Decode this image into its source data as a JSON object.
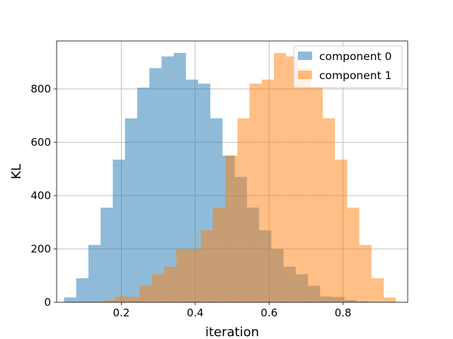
{
  "chart_data": {
    "type": "bar",
    "subtype": "overlapping-histogram",
    "xlabel": "iteration",
    "ylabel": "KL",
    "xlim": [
      0.025,
      0.975
    ],
    "ylim": [
      0,
      980
    ],
    "xticks": [
      0.2,
      0.4,
      0.6,
      0.8
    ],
    "yticks": [
      0,
      200,
      400,
      600,
      800
    ],
    "xtick_labels": [
      "0.2",
      "0.4",
      "0.6",
      "0.8"
    ],
    "ytick_labels": [
      "0",
      "200",
      "400",
      "600",
      "800"
    ],
    "grid": true,
    "legend_position": "top-right",
    "series": [
      {
        "name": "component 0",
        "color": "#1f77b4",
        "opacity": 0.5,
        "bins": [
          {
            "x0": 0.045,
            "x1": 0.078,
            "count": 18
          },
          {
            "x0": 0.078,
            "x1": 0.111,
            "count": 90
          },
          {
            "x0": 0.111,
            "x1": 0.144,
            "count": 215
          },
          {
            "x0": 0.144,
            "x1": 0.177,
            "count": 355
          },
          {
            "x0": 0.177,
            "x1": 0.21,
            "count": 535
          },
          {
            "x0": 0.21,
            "x1": 0.243,
            "count": 690
          },
          {
            "x0": 0.243,
            "x1": 0.276,
            "count": 805
          },
          {
            "x0": 0.276,
            "x1": 0.309,
            "count": 878
          },
          {
            "x0": 0.309,
            "x1": 0.342,
            "count": 922
          },
          {
            "x0": 0.342,
            "x1": 0.375,
            "count": 935
          },
          {
            "x0": 0.375,
            "x1": 0.408,
            "count": 835
          },
          {
            "x0": 0.408,
            "x1": 0.441,
            "count": 820
          },
          {
            "x0": 0.441,
            "x1": 0.474,
            "count": 690
          },
          {
            "x0": 0.474,
            "x1": 0.507,
            "count": 550
          },
          {
            "x0": 0.507,
            "x1": 0.54,
            "count": 470
          },
          {
            "x0": 0.54,
            "x1": 0.573,
            "count": 355
          },
          {
            "x0": 0.573,
            "x1": 0.606,
            "count": 270
          },
          {
            "x0": 0.606,
            "x1": 0.639,
            "count": 200
          },
          {
            "x0": 0.639,
            "x1": 0.672,
            "count": 133
          },
          {
            "x0": 0.672,
            "x1": 0.705,
            "count": 105
          },
          {
            "x0": 0.705,
            "x1": 0.738,
            "count": 62
          },
          {
            "x0": 0.738,
            "x1": 0.771,
            "count": 22
          },
          {
            "x0": 0.771,
            "x1": 0.804,
            "count": 20
          },
          {
            "x0": 0.804,
            "x1": 0.837,
            "count": 8
          },
          {
            "x0": 0.837,
            "x1": 0.87,
            "count": 3
          }
        ]
      },
      {
        "name": "component 1",
        "color": "#ff7f0e",
        "opacity": 0.5,
        "bins": [
          {
            "x0": 0.118,
            "x1": 0.151,
            "count": 3
          },
          {
            "x0": 0.151,
            "x1": 0.184,
            "count": 8
          },
          {
            "x0": 0.184,
            "x1": 0.217,
            "count": 22
          },
          {
            "x0": 0.217,
            "x1": 0.25,
            "count": 20
          },
          {
            "x0": 0.25,
            "x1": 0.283,
            "count": 62
          },
          {
            "x0": 0.283,
            "x1": 0.316,
            "count": 105
          },
          {
            "x0": 0.316,
            "x1": 0.349,
            "count": 133
          },
          {
            "x0": 0.349,
            "x1": 0.382,
            "count": 200
          },
          {
            "x0": 0.382,
            "x1": 0.415,
            "count": 200
          },
          {
            "x0": 0.415,
            "x1": 0.448,
            "count": 270
          },
          {
            "x0": 0.448,
            "x1": 0.481,
            "count": 355
          },
          {
            "x0": 0.481,
            "x1": 0.514,
            "count": 550
          },
          {
            "x0": 0.514,
            "x1": 0.547,
            "count": 690
          },
          {
            "x0": 0.547,
            "x1": 0.58,
            "count": 820
          },
          {
            "x0": 0.58,
            "x1": 0.613,
            "count": 835
          },
          {
            "x0": 0.613,
            "x1": 0.646,
            "count": 935
          },
          {
            "x0": 0.646,
            "x1": 0.679,
            "count": 922
          },
          {
            "x0": 0.679,
            "x1": 0.712,
            "count": 878
          },
          {
            "x0": 0.712,
            "x1": 0.745,
            "count": 805
          },
          {
            "x0": 0.745,
            "x1": 0.778,
            "count": 690
          },
          {
            "x0": 0.778,
            "x1": 0.811,
            "count": 535
          },
          {
            "x0": 0.811,
            "x1": 0.844,
            "count": 355
          },
          {
            "x0": 0.844,
            "x1": 0.877,
            "count": 215
          },
          {
            "x0": 0.877,
            "x1": 0.91,
            "count": 90
          },
          {
            "x0": 0.91,
            "x1": 0.943,
            "count": 18
          }
        ]
      }
    ]
  }
}
